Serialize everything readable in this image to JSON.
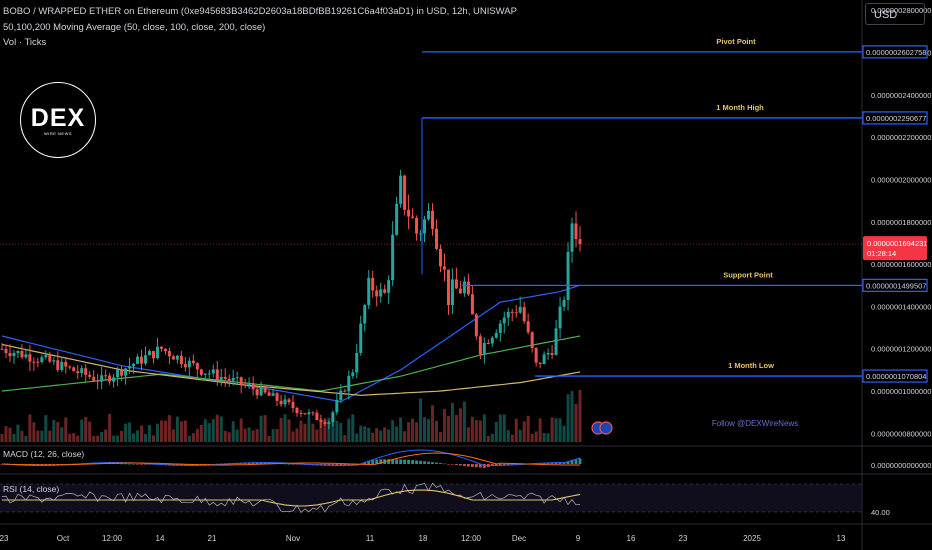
{
  "header": {
    "title": "BOBO / WRAPPED ETHER on Ethereum (0xe945683B3462D2603a18BDfBB19261C6a4f03aD1) in USD, 12h, UNISWAP",
    "ma_legend": "50,100,200 Moving Average (50, close, 100, close, 200, close)",
    "vol_legend": "Vol · Ticks"
  },
  "currency_button": "USD",
  "logo": {
    "text": "DEX",
    "subtext": "WIRE NEWS"
  },
  "watermark": "Follow @DEXWireNews",
  "colors": {
    "up": "#26a69a",
    "down": "#ef5350",
    "ma50": "#2962ff",
    "ma100": "#4caf50",
    "ma200": "#d4b76a",
    "level_line": "#2962ff",
    "level_label": "#e3c56c",
    "macd_line": "#2962ff",
    "signal_line": "#ff6d00",
    "rsi_line": "#b2b5be",
    "rsi_ma": "#e3c56c",
    "price_badge": "#f23645"
  },
  "chart_data": {
    "type": "candlestick",
    "price_axis": {
      "ticks": [
        "0.0000002800000",
        "0.0000002600000",
        "0.0000002400000",
        "0.0000002200000",
        "0.0000002000000",
        "0.0000001800000",
        "0.0000001600000",
        "0.0000001400000",
        "0.0000001200000",
        "0.0000001000000",
        "0.0000000800000"
      ],
      "tick_values": [
        2.8e-07,
        2.6e-07,
        2.4e-07,
        2.2e-07,
        2e-07,
        1.8e-07,
        1.6e-07,
        1.4e-07,
        1.2e-07,
        1e-07,
        8e-08
      ],
      "range": [
        7.45e-08,
        2.848e-07
      ]
    },
    "x_axis_ticks": [
      "23",
      "Oct",
      "12:00",
      "14",
      "21",
      "Nov",
      "11",
      "18",
      "12:00",
      "Dec",
      "9",
      "16",
      "23",
      "2025",
      "13"
    ],
    "levels": [
      {
        "name": "Pivot Point",
        "value": 2.602758e-07,
        "price_label": "0.0000002602758"
      },
      {
        "name": "1 Month High",
        "value": 2.290677e-07,
        "price_label": "0.0000002290677"
      },
      {
        "name": "Support Point",
        "value": 1.499507e-07,
        "price_label": "0.0000001499507"
      },
      {
        "name": "1 Month Low",
        "value": 1.070804e-07,
        "price_label": "0.0000001070804"
      }
    ],
    "current_price": {
      "value": 1.694231e-07,
      "label": "0.0000001694231",
      "countdown": "01:28:14"
    },
    "macd": {
      "label": "MACD (12, 26, close)",
      "axis_label": "0.0000000000000"
    },
    "rsi": {
      "label": "RSI (14, close)",
      "axis_label": "40.00"
    }
  }
}
